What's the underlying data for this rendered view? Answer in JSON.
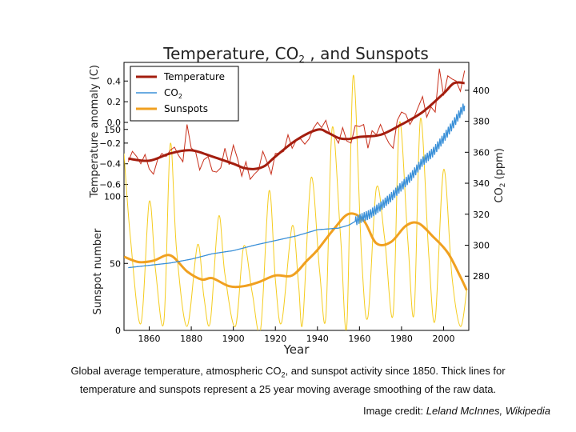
{
  "chart_data": {
    "type": "line",
    "title": "Temperature, CO",
    "title_sub": "2",
    "title_tail": " , and Sunspots",
    "xlabel": "Year",
    "xlim": [
      1848,
      2012
    ],
    "x_ticks": [
      1860,
      1880,
      1900,
      1920,
      1940,
      1960,
      1980,
      2000
    ],
    "panels": {
      "temperature": {
        "ylabel": "Temperature anomaly (C)",
        "ylim": [
          -0.75,
          0.58
        ],
        "y_ticks": [
          0.4,
          0.2,
          0.0,
          -0.2,
          -0.4,
          -0.6
        ],
        "y_tick_labels": [
          "0.4",
          "0.2",
          "0.0",
          "−0.2",
          "−0.4",
          "−0.6"
        ]
      },
      "sunspots": {
        "ylabel": "Sunspot number",
        "ylim": [
          0,
          200
        ],
        "y_ticks": [
          0,
          50,
          100,
          150
        ],
        "y_tick_labels": [
          "0",
          "50",
          "100",
          "150"
        ]
      },
      "co2": {
        "ylabel": "CO",
        "ylabel_sub": "2",
        "ylabel_tail": " (ppm)",
        "ylim": [
          245,
          418
        ],
        "y_ticks": [
          280,
          300,
          320,
          340,
          360,
          380,
          400
        ],
        "y_tick_labels": [
          "280",
          "300",
          "320",
          "340",
          "360",
          "380",
          "400"
        ]
      }
    },
    "legend": {
      "placement": "top-left",
      "entries": [
        {
          "label": "Temperature",
          "color": "#a31d0e"
        },
        {
          "label": "CO",
          "label_sub": "2",
          "color": "#3a90d8"
        },
        {
          "label": "Sunspots",
          "color": "#f0a020"
        }
      ]
    },
    "series": [
      {
        "name": "Temperature",
        "kind": "smoothed",
        "color": "#a31d0e",
        "x": [
          1850,
          1860,
          1870,
          1880,
          1890,
          1900,
          1905,
          1910,
          1915,
          1920,
          1930,
          1940,
          1945,
          1950,
          1955,
          1960,
          1970,
          1980,
          1990,
          2000,
          2005,
          2010
        ],
        "y": [
          -0.35,
          -0.37,
          -0.3,
          -0.27,
          -0.33,
          -0.4,
          -0.44,
          -0.45,
          -0.42,
          -0.33,
          -0.17,
          -0.07,
          -0.1,
          -0.15,
          -0.16,
          -0.14,
          -0.12,
          -0.02,
          0.1,
          0.28,
          0.38,
          0.38
        ]
      },
      {
        "name": "Temperature raw",
        "kind": "raw",
        "color": "#c8301c",
        "x": [
          1850,
          1852,
          1854,
          1856,
          1858,
          1860,
          1862,
          1864,
          1866,
          1868,
          1870,
          1872,
          1874,
          1876,
          1878,
          1880,
          1882,
          1884,
          1886,
          1888,
          1890,
          1892,
          1894,
          1896,
          1898,
          1900,
          1902,
          1904,
          1906,
          1908,
          1910,
          1912,
          1914,
          1916,
          1918,
          1920,
          1922,
          1924,
          1926,
          1928,
          1930,
          1932,
          1934,
          1936,
          1938,
          1940,
          1942,
          1944,
          1946,
          1948,
          1950,
          1952,
          1954,
          1956,
          1958,
          1960,
          1962,
          1964,
          1966,
          1968,
          1970,
          1972,
          1974,
          1976,
          1978,
          1980,
          1982,
          1984,
          1986,
          1988,
          1990,
          1992,
          1994,
          1996,
          1998,
          2000,
          2002,
          2004,
          2006,
          2008,
          2010
        ],
        "y": [
          -0.38,
          -0.28,
          -0.33,
          -0.4,
          -0.31,
          -0.45,
          -0.5,
          -0.36,
          -0.3,
          -0.33,
          -0.27,
          -0.24,
          -0.32,
          -0.38,
          -0.02,
          -0.25,
          -0.28,
          -0.46,
          -0.36,
          -0.33,
          -0.47,
          -0.48,
          -0.44,
          -0.25,
          -0.41,
          -0.22,
          -0.35,
          -0.52,
          -0.38,
          -0.55,
          -0.5,
          -0.46,
          -0.28,
          -0.38,
          -0.5,
          -0.3,
          -0.3,
          -0.28,
          -0.12,
          -0.25,
          -0.17,
          -0.16,
          -0.21,
          -0.16,
          -0.06,
          0.0,
          -0.05,
          0.02,
          -0.12,
          -0.13,
          -0.2,
          -0.05,
          -0.18,
          -0.2,
          -0.03,
          -0.04,
          -0.02,
          -0.25,
          -0.08,
          -0.12,
          -0.02,
          -0.12,
          -0.2,
          -0.25,
          0.02,
          0.1,
          0.08,
          -0.02,
          0.05,
          0.15,
          0.25,
          0.05,
          0.15,
          0.1,
          0.52,
          0.26,
          0.45,
          0.42,
          0.4,
          0.3,
          0.5
        ]
      },
      {
        "name": "CO2",
        "kind": "smoothed",
        "color": "#3a90d8",
        "x": [
          1850,
          1870,
          1880,
          1890,
          1900,
          1910,
          1920,
          1930,
          1940,
          1950,
          1955,
          1960,
          1965,
          1970,
          1975,
          1980,
          1985,
          1990,
          1995,
          2000,
          2005,
          2010
        ],
        "y": [
          285.5,
          288.5,
          291,
          294.5,
          296.5,
          300,
          303,
          306,
          310,
          311,
          313,
          317,
          320,
          325,
          331,
          338,
          345,
          354,
          360,
          369,
          379,
          390
        ]
      },
      {
        "name": "Sunspots",
        "kind": "smoothed",
        "color": "#f0a020",
        "x": [
          1848,
          1855,
          1862,
          1870,
          1878,
          1885,
          1890,
          1898,
          1905,
          1912,
          1920,
          1928,
          1935,
          1940,
          1948,
          1955,
          1962,
          1968,
          1975,
          1982,
          1988,
          1995,
          2002,
          2008,
          2011
        ],
        "y": [
          55,
          51,
          52,
          56,
          44,
          38,
          39,
          33,
          33,
          36,
          41,
          41,
          52,
          60,
          76,
          87,
          82,
          65,
          66,
          78,
          80,
          70,
          58,
          40,
          30
        ]
      },
      {
        "name": "Sunspots raw",
        "kind": "raw",
        "color": "#f5cc1e",
        "x": [
          1848,
          1851,
          1856,
          1860,
          1863,
          1867,
          1870,
          1873,
          1878,
          1883,
          1886,
          1889,
          1893,
          1896,
          1901,
          1905,
          1909,
          1913,
          1917,
          1920,
          1923,
          1928,
          1931,
          1933,
          1937,
          1941,
          1944,
          1947,
          1951,
          1954,
          1957,
          1961,
          1964,
          1968,
          1972,
          1976,
          1979,
          1983,
          1986,
          1989,
          1993,
          1996,
          2000,
          2004,
          2008,
          2011
        ],
        "y": [
          132,
          70,
          5,
          96,
          45,
          7,
          139,
          60,
          3,
          64,
          25,
          6,
          85,
          42,
          3,
          63,
          28,
          1,
          104,
          38,
          6,
          78,
          35,
          6,
          114,
          45,
          10,
          151,
          70,
          4,
          190,
          55,
          10,
          106,
          68,
          12,
          155,
          67,
          13,
          158,
          55,
          8,
          120,
          40,
          3,
          30
        ]
      }
    ]
  },
  "caption": {
    "line1_pre": "Global average temperature, atmospheric CO",
    "line1_sub": "2",
    "line1_post": ", and sunspot activity since 1850. Thick lines for",
    "line2": "temperature and sunspots represent a 25 year moving average smoothing of the raw data."
  },
  "credit": {
    "prefix": "Image credit: ",
    "source": "Leland McInnes, Wikipedia"
  }
}
